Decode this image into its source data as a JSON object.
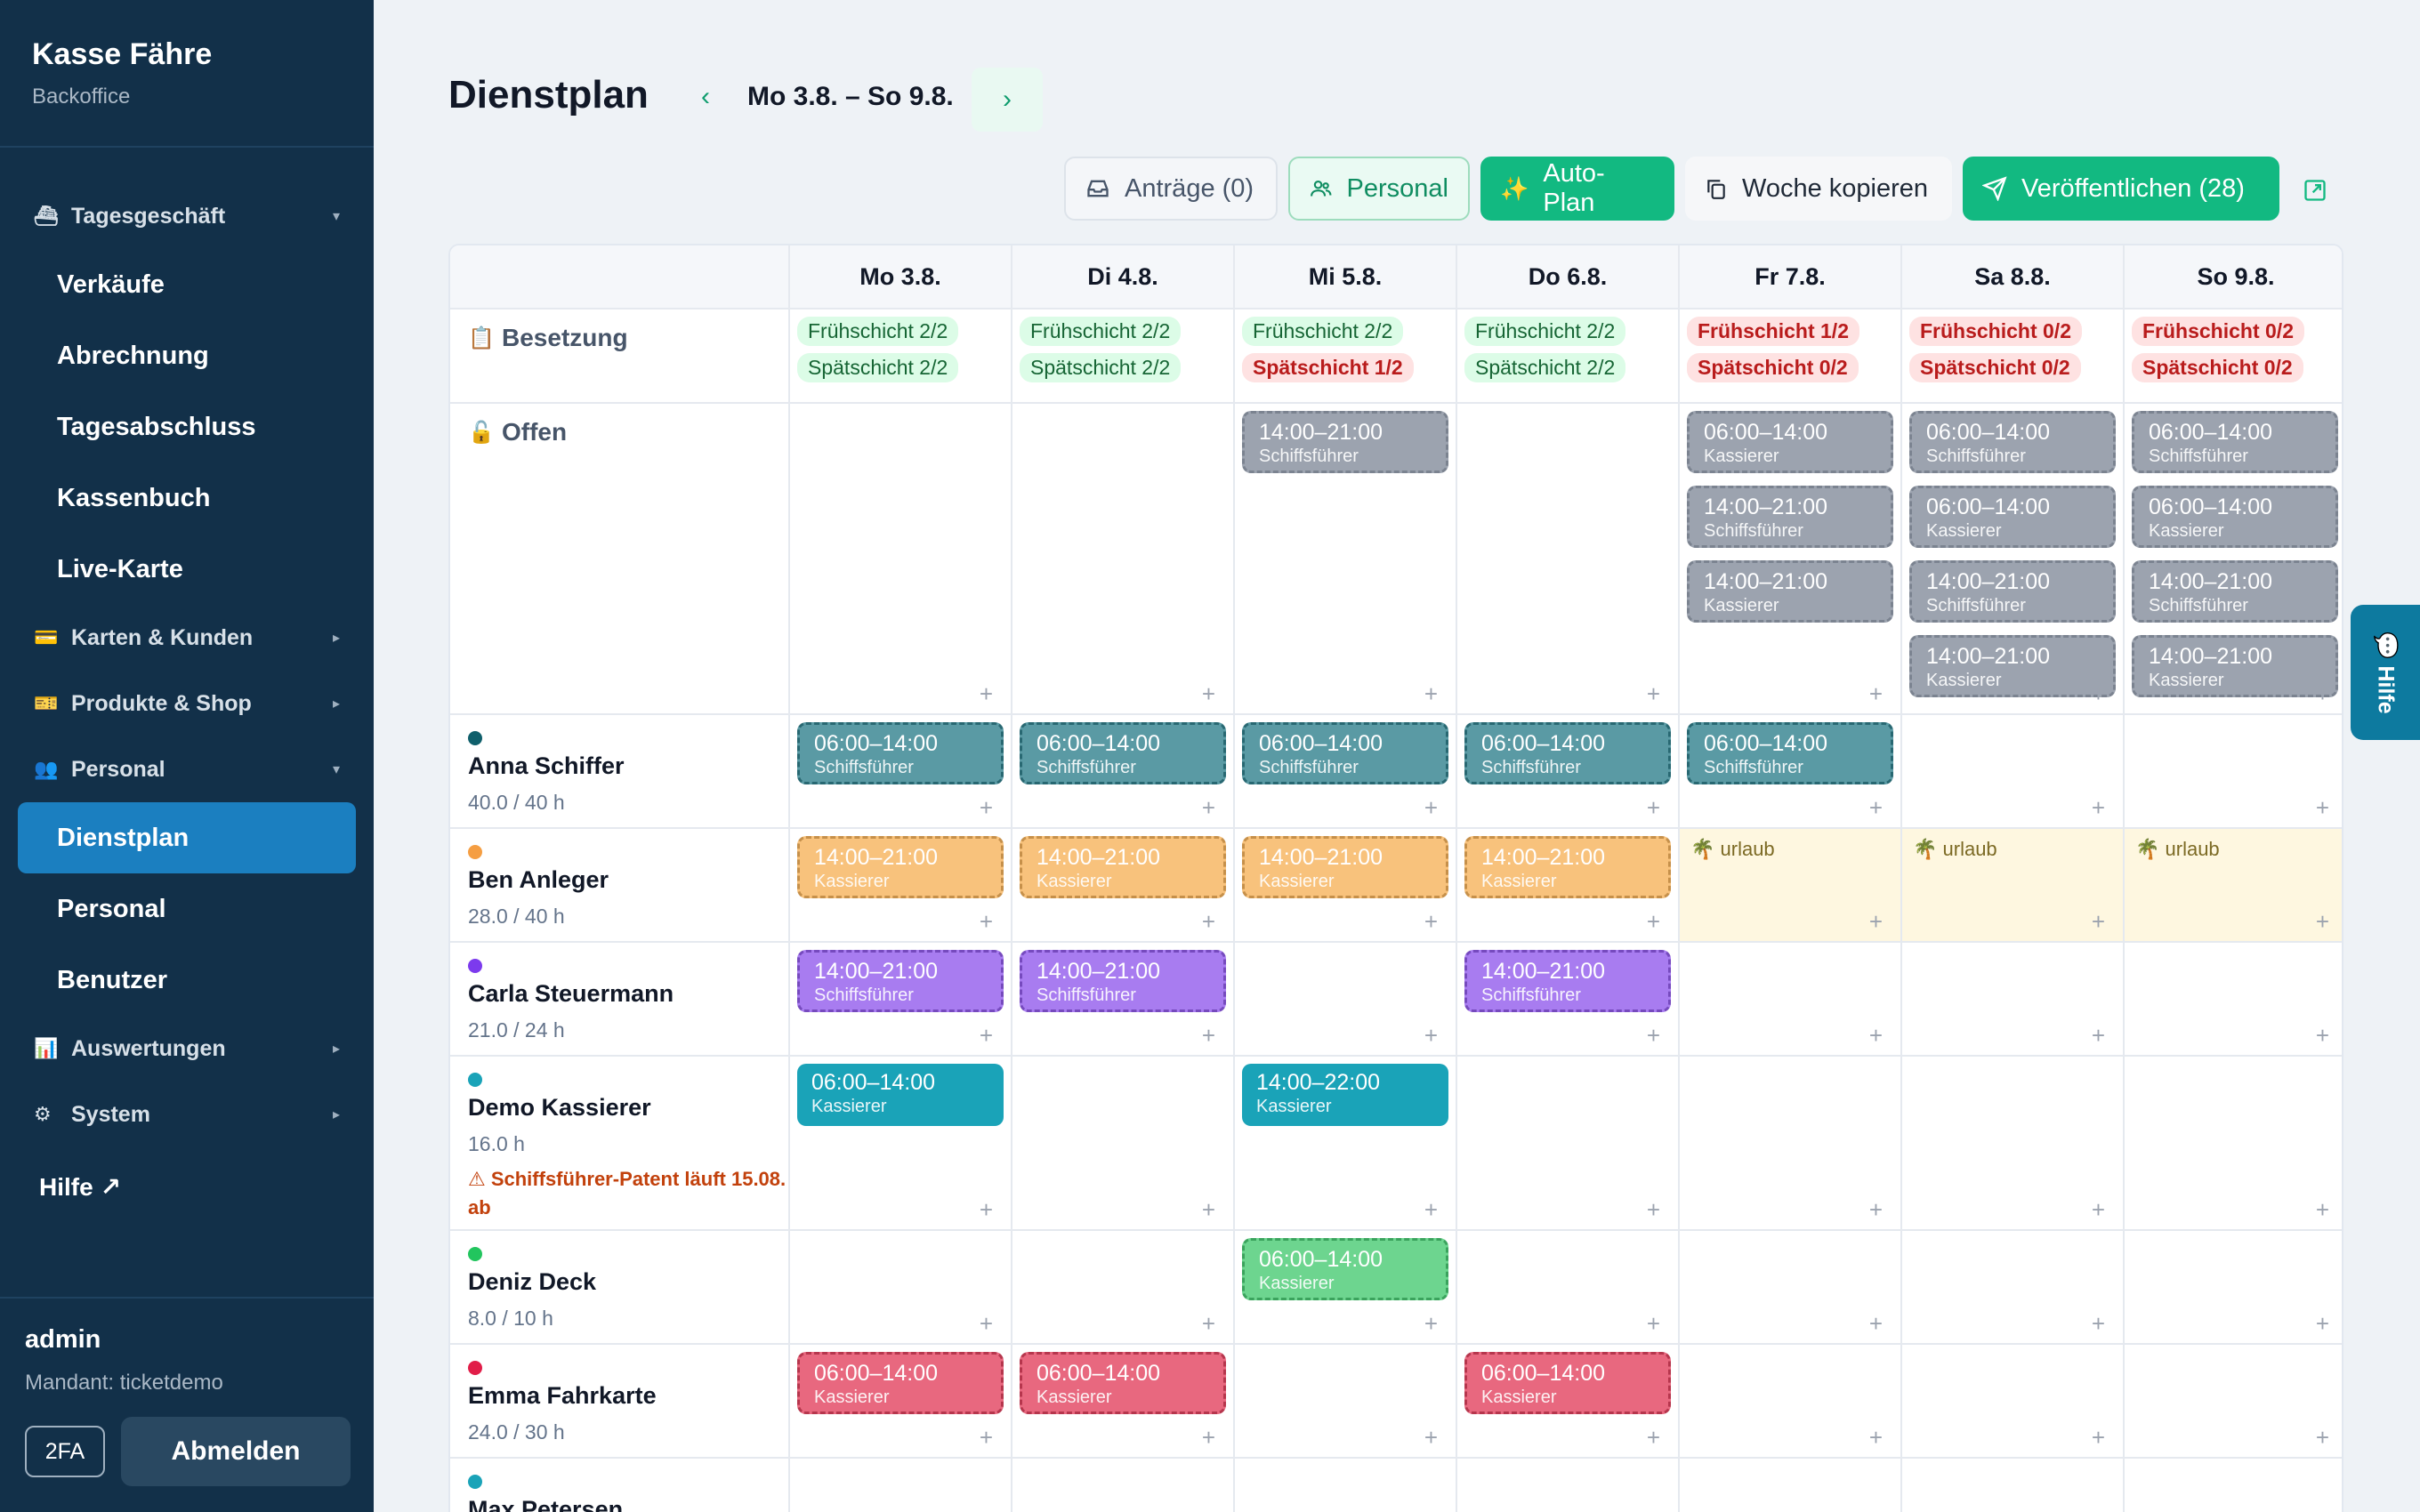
{
  "app": {
    "title": "Kasse Fähre",
    "subtitle": "Backoffice"
  },
  "sidebar": {
    "groups": [
      {
        "label": "Tagesgeschäft",
        "icon": "ship-icon",
        "items": [
          "Verkäufe",
          "Abrechnung",
          "Tagesabschluss",
          "Kassenbuch",
          "Live-Karte"
        ]
      },
      {
        "label": "Karten & Kunden",
        "icon": "card-icon"
      },
      {
        "label": "Produkte & Shop",
        "icon": "ticket-icon"
      },
      {
        "label": "Personal",
        "icon": "people-icon",
        "items": [
          "Dienstplan",
          "Personal",
          "Benutzer"
        ],
        "active": "Dienstplan"
      },
      {
        "label": "Auswertungen",
        "icon": "chart-icon"
      },
      {
        "label": "System",
        "icon": "gear-icon"
      }
    ],
    "help": "Hilfe ↗",
    "user": "admin",
    "tenant": "Mandant: ticketdemo",
    "twofa": "2FA",
    "logout": "Abmelden"
  },
  "header": {
    "title": "Dienstplan",
    "week": "Mo 3.8. – So 9.8."
  },
  "toolbar": {
    "antraege": "Anträge (0)",
    "personal": "Personal",
    "autoplan": "Auto-Plan",
    "copy": "Woche kopieren",
    "publish": "Veröffentlichen (28)"
  },
  "days": [
    "Mo 3.8.",
    "Di 4.8.",
    "Mi 5.8.",
    "Do 6.8.",
    "Fr 7.8.",
    "Sa 8.8.",
    "So 9.8."
  ],
  "rows": {
    "besetzung": "Besetzung",
    "offen": "Offen"
  },
  "besetzung": [
    [
      {
        "t": "Frühschicht 2/2",
        "ok": true
      },
      {
        "t": "Spätschicht 2/2",
        "ok": true
      }
    ],
    [
      {
        "t": "Frühschicht 2/2",
        "ok": true
      },
      {
        "t": "Spätschicht 2/2",
        "ok": true
      }
    ],
    [
      {
        "t": "Frühschicht 2/2",
        "ok": true
      },
      {
        "t": "Spätschicht 1/2",
        "ok": false
      }
    ],
    [
      {
        "t": "Frühschicht 2/2",
        "ok": true
      },
      {
        "t": "Spätschicht 2/2",
        "ok": true
      }
    ],
    [
      {
        "t": "Frühschicht 1/2",
        "ok": false
      },
      {
        "t": "Spätschicht 0/2",
        "ok": false
      }
    ],
    [
      {
        "t": "Frühschicht 0/2",
        "ok": false
      },
      {
        "t": "Spätschicht 0/2",
        "ok": false
      }
    ],
    [
      {
        "t": "Frühschicht 0/2",
        "ok": false
      },
      {
        "t": "Spätschicht 0/2",
        "ok": false
      }
    ]
  ],
  "offen": [
    [],
    [],
    [
      {
        "time": "14:00–21:00",
        "role": "Schiffsführer"
      }
    ],
    [],
    [
      {
        "time": "06:00–14:00",
        "role": "Kassierer"
      },
      {
        "time": "14:00–21:00",
        "role": "Schiffsführer"
      },
      {
        "time": "14:00–21:00",
        "role": "Kassierer"
      }
    ],
    [
      {
        "time": "06:00–14:00",
        "role": "Schiffsführer"
      },
      {
        "time": "06:00–14:00",
        "role": "Kassierer"
      },
      {
        "time": "14:00–21:00",
        "role": "Schiffsführer"
      },
      {
        "time": "14:00–21:00",
        "role": "Kassierer"
      }
    ],
    [
      {
        "time": "06:00–14:00",
        "role": "Schiffsführer"
      },
      {
        "time": "06:00–14:00",
        "role": "Kassierer"
      },
      {
        "time": "14:00–21:00",
        "role": "Schiffsführer"
      },
      {
        "time": "14:00–21:00",
        "role": "Kassierer"
      }
    ]
  ],
  "employees": [
    {
      "name": "Anna Schiffer",
      "hours": "40.0 / 40 h",
      "color": "#0f5f6b",
      "shiftColor": "#5a9aa4",
      "days": [
        {
          "time": "06:00–14:00",
          "role": "Schiffsführer",
          "dash": true
        },
        {
          "time": "06:00–14:00",
          "role": "Schiffsführer",
          "dash": true
        },
        {
          "time": "06:00–14:00",
          "role": "Schiffsführer",
          "dash": true
        },
        {
          "time": "06:00–14:00",
          "role": "Schiffsführer",
          "dash": true
        },
        {
          "time": "06:00–14:00",
          "role": "Schiffsführer",
          "dash": true
        },
        null,
        null
      ]
    },
    {
      "name": "Ben Anleger",
      "hours": "28.0 / 40 h",
      "color": "#f59e42",
      "shiftColor": "#f8c27c",
      "days": [
        {
          "time": "14:00–21:00",
          "role": "Kassierer",
          "dash": true
        },
        {
          "time": "14:00–21:00",
          "role": "Kassierer",
          "dash": true
        },
        {
          "time": "14:00–21:00",
          "role": "Kassierer",
          "dash": true
        },
        {
          "time": "14:00–21:00",
          "role": "Kassierer",
          "dash": true
        },
        {
          "vacation": "urlaub"
        },
        {
          "vacation": "urlaub"
        },
        {
          "vacation": "urlaub"
        }
      ]
    },
    {
      "name": "Carla Steuermann",
      "hours": "21.0 / 24 h",
      "color": "#7c3aed",
      "shiftColor": "#a87cf0",
      "days": [
        {
          "time": "14:00–21:00",
          "role": "Schiffsführer",
          "dash": true
        },
        {
          "time": "14:00–21:00",
          "role": "Schiffsführer",
          "dash": true
        },
        null,
        {
          "time": "14:00–21:00",
          "role": "Schiffsführer",
          "dash": true
        },
        null,
        null,
        null
      ]
    },
    {
      "name": "Demo Kassierer",
      "hours": "16.0 h",
      "warn": "⚠ Schiffsführer-Patent läuft 15.08. ab",
      "color": "#1aa3b8",
      "shiftColor": "#1aa3b8",
      "days": [
        {
          "time": "06:00–14:00",
          "role": "Kassierer",
          "dash": false
        },
        null,
        {
          "time": "14:00–22:00",
          "role": "Kassierer",
          "dash": false
        },
        null,
        null,
        null,
        null
      ]
    },
    {
      "name": "Deniz Deck",
      "hours": "8.0 / 10 h",
      "color": "#22c55e",
      "shiftColor": "#6dd58f",
      "days": [
        null,
        null,
        {
          "time": "06:00–14:00",
          "role": "Kassierer",
          "dash": true
        },
        null,
        null,
        null,
        null
      ]
    },
    {
      "name": "Emma Fahrkarte",
      "hours": "24.0 / 30 h",
      "color": "#e11d48",
      "shiftColor": "#e8687f",
      "days": [
        {
          "time": "06:00–14:00",
          "role": "Kassierer",
          "dash": true
        },
        {
          "time": "06:00–14:00",
          "role": "Kassierer",
          "dash": true
        },
        null,
        {
          "time": "06:00–14:00",
          "role": "Kassierer",
          "dash": true
        },
        null,
        null,
        null
      ]
    },
    {
      "name": "Max Petersen",
      "hours": "",
      "color": "#1aa3b8",
      "shiftColor": "#1aa3b8",
      "days": [
        null,
        null,
        null,
        null,
        null,
        null,
        null
      ]
    }
  ],
  "help_tab": "💬 Hilfe"
}
